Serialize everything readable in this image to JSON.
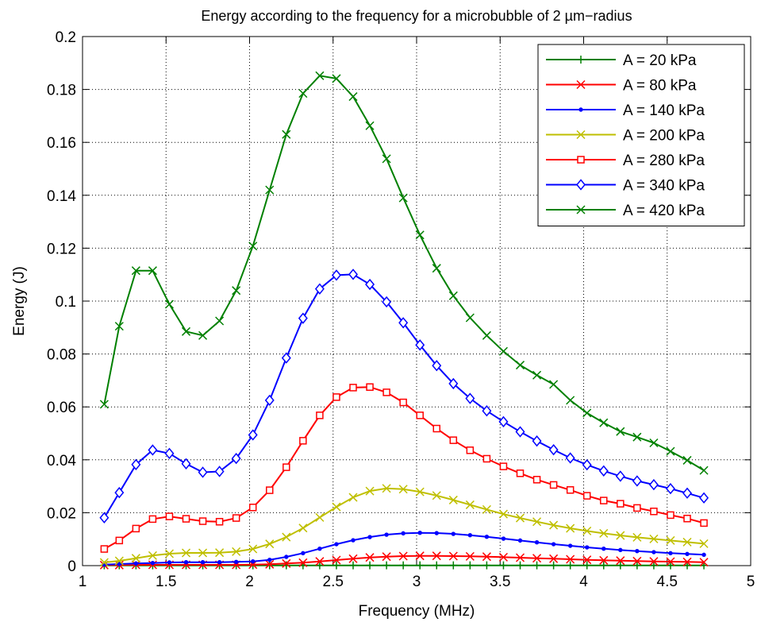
{
  "chart_data": {
    "type": "line",
    "title": "Energy according to the frequency for a microbubble of 2 µm−radius",
    "xlabel": "Frequency (MHz)",
    "ylabel": "Energy (J)",
    "xlim": [
      1,
      5
    ],
    "ylim": [
      0,
      0.2
    ],
    "xticks": [
      1,
      1.5,
      2,
      2.5,
      3,
      3.5,
      4,
      4.5,
      5
    ],
    "xtick_labels": [
      "1",
      "1.5",
      "2",
      "2.5",
      "3",
      "3.5",
      "4",
      "4.5",
      "5"
    ],
    "yticks": [
      0,
      0.02,
      0.04,
      0.06,
      0.08,
      0.1,
      0.12,
      0.14,
      0.16,
      0.18,
      0.2
    ],
    "ytick_labels": [
      "0",
      "0.02",
      "0.04",
      "0.06",
      "0.08",
      "0.1",
      "0.12",
      "0.14",
      "0.16",
      "0.18",
      "0.2"
    ],
    "grid": true,
    "legend_position": "top-right",
    "x": [
      1.13,
      1.22,
      1.32,
      1.42,
      1.52,
      1.62,
      1.72,
      1.82,
      1.92,
      2.02,
      2.12,
      2.22,
      2.32,
      2.42,
      2.52,
      2.62,
      2.72,
      2.82,
      2.92,
      3.02,
      3.12,
      3.22,
      3.32,
      3.42,
      3.52,
      3.62,
      3.72,
      3.82,
      3.92,
      4.02,
      4.12,
      4.22,
      4.32,
      4.42,
      4.52,
      4.62,
      4.72
    ],
    "series": [
      {
        "name": "A = 20 kPa",
        "color": "#008000",
        "marker": "plus",
        "values": [
          0.0001,
          0.0001,
          0.0001,
          0.0001,
          0.0001,
          0.0001,
          0.0001,
          0.0001,
          0.0001,
          0.0001,
          0.0001,
          0.0001,
          0.0001,
          0.0001,
          0.0001,
          0.0001,
          0.0001,
          0.0001,
          0.0001,
          0.0001,
          0.0001,
          0.0001,
          0.0001,
          0.0001,
          0.0001,
          0.0001,
          0.0001,
          0.0001,
          0.0001,
          0.0001,
          0.0001,
          0.0001,
          0.0001,
          0.0001,
          0.0001,
          0.0001,
          0.0001
        ]
      },
      {
        "name": "A = 80 kPa",
        "color": "#ff0000",
        "marker": "x",
        "values": [
          0.0002,
          0.0002,
          0.0003,
          0.0003,
          0.0003,
          0.0003,
          0.0003,
          0.0003,
          0.0003,
          0.0004,
          0.0005,
          0.0008,
          0.0011,
          0.0016,
          0.0021,
          0.0026,
          0.0031,
          0.0034,
          0.0036,
          0.0037,
          0.0037,
          0.0036,
          0.0035,
          0.0034,
          0.0032,
          0.003,
          0.0028,
          0.0026,
          0.0024,
          0.0022,
          0.002,
          0.0019,
          0.0017,
          0.0016,
          0.0015,
          0.0014,
          0.0013
        ]
      },
      {
        "name": "A = 140 kPa",
        "color": "#0000ff",
        "marker": "dot",
        "values": [
          0.0004,
          0.0006,
          0.0008,
          0.001,
          0.0012,
          0.0013,
          0.0013,
          0.0013,
          0.0014,
          0.0016,
          0.0022,
          0.0033,
          0.0047,
          0.0064,
          0.0081,
          0.0096,
          0.0108,
          0.0117,
          0.0122,
          0.0124,
          0.0123,
          0.012,
          0.0115,
          0.0109,
          0.0102,
          0.0095,
          0.0088,
          0.0081,
          0.0075,
          0.0069,
          0.0064,
          0.0059,
          0.0055,
          0.0051,
          0.0047,
          0.0044,
          0.0041
        ]
      },
      {
        "name": "A = 200 kPa",
        "color": "#bfbf00",
        "marker": "x",
        "values": [
          0.0012,
          0.0018,
          0.0028,
          0.0038,
          0.0045,
          0.0048,
          0.0048,
          0.0049,
          0.0053,
          0.0063,
          0.0082,
          0.0108,
          0.0142,
          0.0182,
          0.0222,
          0.0258,
          0.0282,
          0.0292,
          0.0289,
          0.0279,
          0.0265,
          0.0248,
          0.023,
          0.0212,
          0.0195,
          0.018,
          0.0166,
          0.0153,
          0.0141,
          0.0131,
          0.0122,
          0.0114,
          0.0107,
          0.0101,
          0.0095,
          0.0089,
          0.0083
        ]
      },
      {
        "name": "A = 280 kPa",
        "color": "#ff0000",
        "marker": "square",
        "values": [
          0.0063,
          0.0095,
          0.014,
          0.0176,
          0.0186,
          0.0177,
          0.0168,
          0.0166,
          0.018,
          0.022,
          0.0285,
          0.0372,
          0.0472,
          0.0568,
          0.0637,
          0.0673,
          0.0675,
          0.0655,
          0.0617,
          0.0568,
          0.0518,
          0.0474,
          0.0436,
          0.0404,
          0.0375,
          0.0349,
          0.0325,
          0.0305,
          0.0286,
          0.0264,
          0.0246,
          0.0234,
          0.0218,
          0.0205,
          0.0191,
          0.0178,
          0.0161
        ]
      },
      {
        "name": "A = 340 kPa",
        "color": "#0000ff",
        "marker": "diamond",
        "values": [
          0.0181,
          0.0276,
          0.0382,
          0.0437,
          0.0424,
          0.0385,
          0.0353,
          0.0356,
          0.0405,
          0.0494,
          0.0625,
          0.0785,
          0.0935,
          0.1046,
          0.1098,
          0.1101,
          0.1063,
          0.0997,
          0.0918,
          0.0834,
          0.0756,
          0.0688,
          0.0632,
          0.0585,
          0.0544,
          0.0506,
          0.0471,
          0.0438,
          0.0407,
          0.0381,
          0.0358,
          0.0338,
          0.032,
          0.0306,
          0.0291,
          0.0274,
          0.0256
        ]
      },
      {
        "name": "A = 420 kPa",
        "color": "#008000",
        "marker": "x",
        "values": [
          0.061,
          0.0905,
          0.1115,
          0.1115,
          0.0988,
          0.0885,
          0.087,
          0.0925,
          0.104,
          0.1208,
          0.142,
          0.163,
          0.1785,
          0.1852,
          0.1841,
          0.1773,
          0.1663,
          0.1538,
          0.139,
          0.125,
          0.1124,
          0.102,
          0.0937,
          0.087,
          0.081,
          0.0758,
          0.072,
          0.0685,
          0.0625,
          0.0577,
          0.054,
          0.0507,
          0.0486,
          0.0464,
          0.0432,
          0.0398,
          0.036
        ]
      }
    ]
  }
}
